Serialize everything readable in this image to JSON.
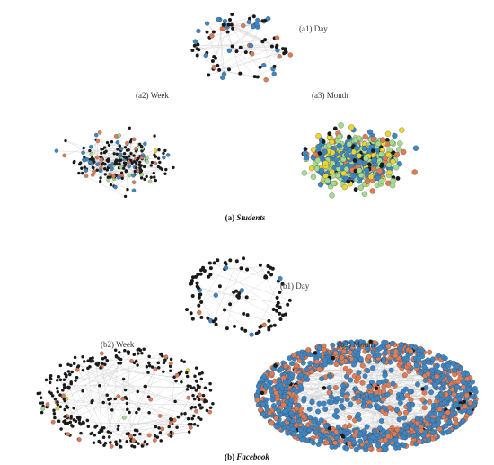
{
  "colors": {
    "black": "#1a1a1a",
    "blue": "#3d86c6",
    "orange": "#e07b53",
    "green": "#a4dc8e",
    "yellow": "#ecd52e",
    "edge": "#cfcfcf"
  },
  "panels": [
    {
      "id": "a1",
      "label": "(a1) Day",
      "shape": "ring",
      "nodes": 90,
      "edges": 55,
      "mix": {
        "black": 0.62,
        "blue": 0.2,
        "orange": 0.18
      }
    },
    {
      "id": "a2",
      "label": "(a2) Week",
      "shape": "cloud",
      "nodes": 230,
      "edges": 140,
      "mix": {
        "black": 0.6,
        "blue": 0.18,
        "orange": 0.1,
        "green": 0.09,
        "yellow": 0.03
      }
    },
    {
      "id": "a3",
      "label": "(a3) Month",
      "shape": "cloud",
      "nodes": 620,
      "edges": 300,
      "mix": {
        "green": 0.32,
        "blue": 0.32,
        "yellow": 0.14,
        "orange": 0.1,
        "black": 0.12
      }
    },
    {
      "id": "b1",
      "label": "(b1) Day",
      "shape": "ring",
      "nodes": 100,
      "edges": 20,
      "mix": {
        "black": 0.94,
        "blue": 0.04,
        "orange": 0.02
      }
    },
    {
      "id": "b2",
      "label": "(b2) Week",
      "shape": "ring",
      "nodes": 340,
      "edges": 90,
      "mix": {
        "black": 0.86,
        "orange": 0.12,
        "green": 0.01,
        "yellow": 0.01
      }
    },
    {
      "id": "b3",
      "label": "(b3) Month",
      "shape": "ring",
      "nodes": 1500,
      "edges": 250,
      "mix": {
        "blue": 0.62,
        "orange": 0.35,
        "black": 0.03
      }
    }
  ],
  "captions": {
    "a": {
      "prefix": "(a)",
      "name": "Students"
    },
    "b": {
      "prefix": "(b)",
      "name": "Facebook"
    }
  }
}
